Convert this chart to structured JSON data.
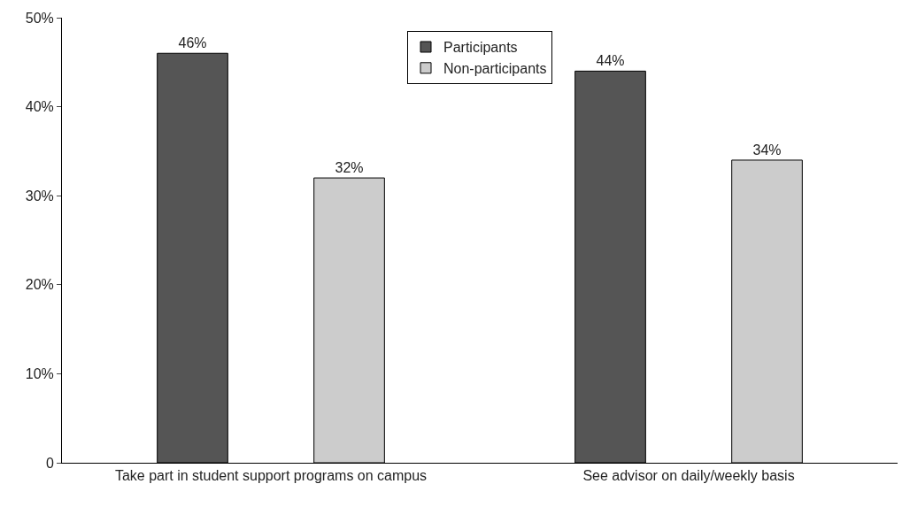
{
  "chart_data": {
    "type": "bar",
    "categories": [
      "Take part in student support programs on campus",
      "See advisor on daily/weekly basis"
    ],
    "series": [
      {
        "name": "Participants",
        "color": "#555555",
        "values": [
          46,
          44
        ],
        "value_labels": [
          "46%",
          "44%"
        ]
      },
      {
        "name": "Non-participants",
        "color": "#cccccc",
        "values": [
          32,
          34
        ],
        "value_labels": [
          "32%",
          "34%"
        ]
      }
    ],
    "ylim": [
      0,
      50
    ],
    "yticks": [
      0,
      {
        "value": 10,
        "label": "10%"
      },
      {
        "value": 20,
        "label": "20%"
      },
      {
        "value": 30,
        "label": "30%"
      },
      {
        "value": 40,
        "label": "40%"
      },
      {
        "value": 50,
        "label": "50%"
      }
    ],
    "legend": "top"
  }
}
